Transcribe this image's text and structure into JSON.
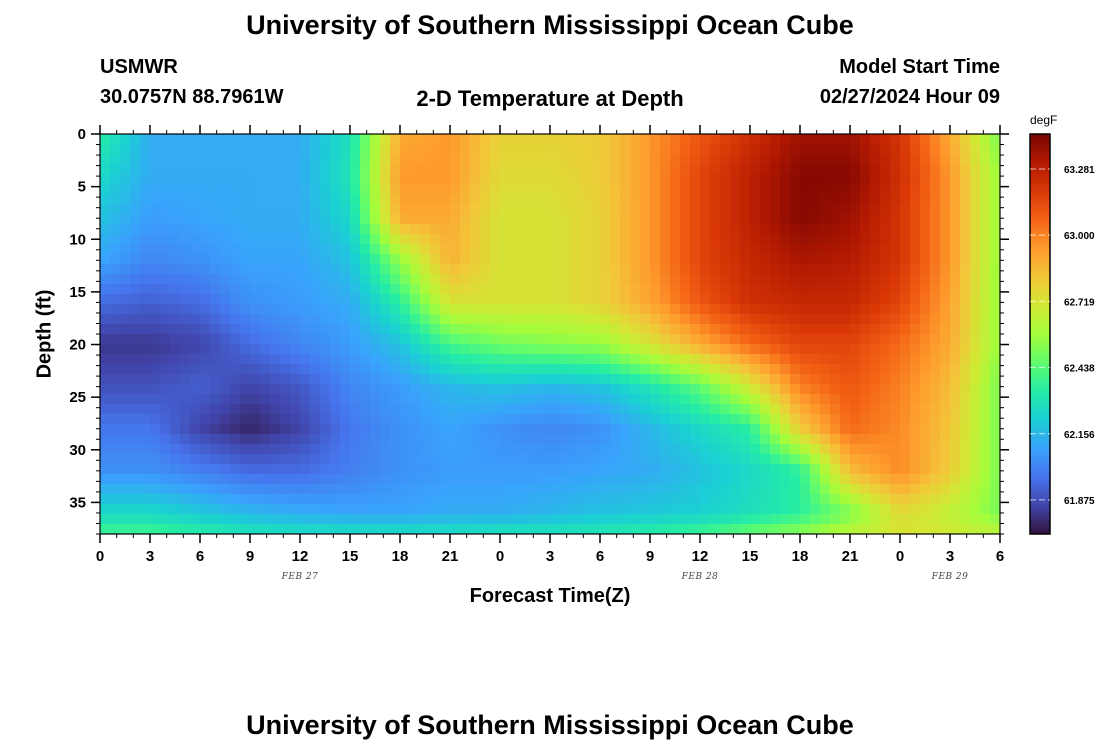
{
  "header": {
    "title": "University of Southern Mississippi Ocean Cube",
    "station_id": "USMWR",
    "station_coords": "30.0757N  88.7961W",
    "subtitle": "2-D Temperature at Depth",
    "model_start_label": "Model Start Time",
    "model_start_value": "02/27/2024 Hour 09"
  },
  "footer": {
    "title": "University of Southern Mississippi Ocean Cube"
  },
  "chart_data": {
    "type": "heatmap",
    "title": "2-D Temperature at Depth",
    "xlabel": "Forecast Time(Z)",
    "ylabel": "Depth (ft)",
    "x_hours_from_start": [
      0,
      3,
      6,
      9,
      12,
      15,
      18,
      21,
      24,
      27,
      30,
      33,
      36,
      39,
      42,
      45,
      48,
      51,
      54
    ],
    "x_tick_labels": [
      "0",
      "3",
      "6",
      "9",
      "12",
      "15",
      "18",
      "21",
      "0",
      "3",
      "6",
      "9",
      "12",
      "15",
      "18",
      "21",
      "0",
      "3",
      "6"
    ],
    "x_date_labels": [
      {
        "label": "FEB 27",
        "hour": 12
      },
      {
        "label": "FEB 28",
        "hour": 36
      },
      {
        "label": "FEB 29",
        "hour": 51
      }
    ],
    "xlim": [
      0,
      54
    ],
    "ylim": [
      0,
      38
    ],
    "y_inverted": true,
    "y_ticks": [
      0,
      5,
      10,
      15,
      20,
      25,
      30,
      35
    ],
    "y_tick_labels": [
      "0",
      "5",
      "10",
      "15",
      "20",
      "25",
      "30",
      "35"
    ],
    "colorbar": {
      "units": "degF",
      "min": 61.73,
      "max": 63.43,
      "ticks": [
        61.875,
        62.156,
        62.438,
        62.719,
        63.0,
        63.281
      ],
      "tick_labels": [
        "61.875",
        "62.156",
        "62.438",
        "62.719",
        "63.000",
        "63.281"
      ],
      "colormap": [
        "#30123b",
        "#4145ab",
        "#4675ed",
        "#39a2fc",
        "#1bcfd4",
        "#24eca6",
        "#61fc6c",
        "#a4fc3b",
        "#d1e834",
        "#f3c63a",
        "#fe9b2d",
        "#f36315",
        "#d93806",
        "#b11901",
        "#7a0402"
      ]
    },
    "grid_depths_ft": [
      0,
      4,
      8,
      12,
      16,
      20,
      24,
      28,
      32,
      36,
      38
    ],
    "grid_hours": [
      0,
      3,
      6,
      9,
      12,
      15,
      18,
      21,
      24,
      27,
      30,
      33,
      36,
      39,
      42,
      45,
      48,
      51,
      54
    ],
    "values_degF": [
      [
        62.35,
        62.12,
        62.12,
        62.12,
        62.12,
        62.28,
        62.9,
        62.95,
        62.78,
        62.78,
        62.8,
        62.95,
        63.1,
        63.22,
        63.35,
        63.35,
        63.2,
        62.9,
        62.5
      ],
      [
        62.25,
        62.12,
        62.12,
        62.12,
        62.12,
        62.3,
        62.95,
        62.95,
        62.75,
        62.75,
        62.8,
        62.95,
        63.15,
        63.28,
        63.4,
        63.4,
        63.22,
        62.95,
        62.55
      ],
      [
        62.18,
        62.08,
        62.1,
        62.12,
        62.12,
        62.25,
        62.9,
        62.9,
        62.72,
        62.72,
        62.78,
        62.95,
        63.15,
        63.28,
        63.4,
        63.35,
        63.2,
        62.95,
        62.55
      ],
      [
        62.1,
        62.02,
        62.05,
        62.1,
        62.1,
        62.18,
        62.55,
        62.88,
        62.72,
        62.72,
        62.78,
        62.95,
        63.15,
        63.25,
        63.32,
        63.3,
        63.2,
        62.95,
        62.55
      ],
      [
        61.95,
        61.92,
        61.95,
        62.05,
        62.08,
        62.12,
        62.35,
        62.72,
        62.72,
        62.72,
        62.78,
        62.92,
        63.1,
        63.22,
        63.25,
        63.25,
        63.15,
        62.92,
        62.55
      ],
      [
        61.82,
        61.82,
        61.85,
        61.95,
        62.02,
        62.08,
        62.18,
        62.4,
        62.48,
        62.52,
        62.55,
        62.72,
        62.9,
        63.05,
        63.15,
        63.15,
        63.05,
        62.9,
        62.55
      ],
      [
        61.88,
        61.88,
        61.92,
        61.85,
        61.9,
        62.02,
        62.08,
        62.15,
        62.18,
        62.15,
        62.18,
        62.3,
        62.45,
        62.7,
        63.0,
        63.1,
        63.0,
        62.85,
        62.5
      ],
      [
        61.98,
        61.98,
        61.85,
        61.78,
        61.85,
        61.98,
        62.05,
        62.1,
        62.05,
        62.02,
        62.05,
        62.15,
        62.25,
        62.35,
        62.8,
        63.05,
        62.98,
        62.82,
        62.5
      ],
      [
        62.05,
        62.05,
        62.0,
        61.95,
        61.95,
        62.0,
        62.05,
        62.08,
        62.08,
        62.08,
        62.1,
        62.12,
        62.18,
        62.25,
        62.35,
        62.85,
        62.98,
        62.8,
        62.5
      ],
      [
        62.25,
        62.25,
        62.2,
        62.15,
        62.12,
        62.1,
        62.1,
        62.12,
        62.12,
        62.15,
        62.18,
        62.2,
        62.22,
        62.28,
        62.35,
        62.5,
        62.75,
        62.65,
        62.5
      ],
      [
        62.4,
        62.4,
        62.35,
        62.3,
        62.28,
        62.28,
        62.28,
        62.28,
        62.3,
        62.3,
        62.32,
        62.35,
        62.4,
        62.48,
        62.55,
        62.65,
        62.72,
        62.7,
        62.65
      ]
    ]
  }
}
